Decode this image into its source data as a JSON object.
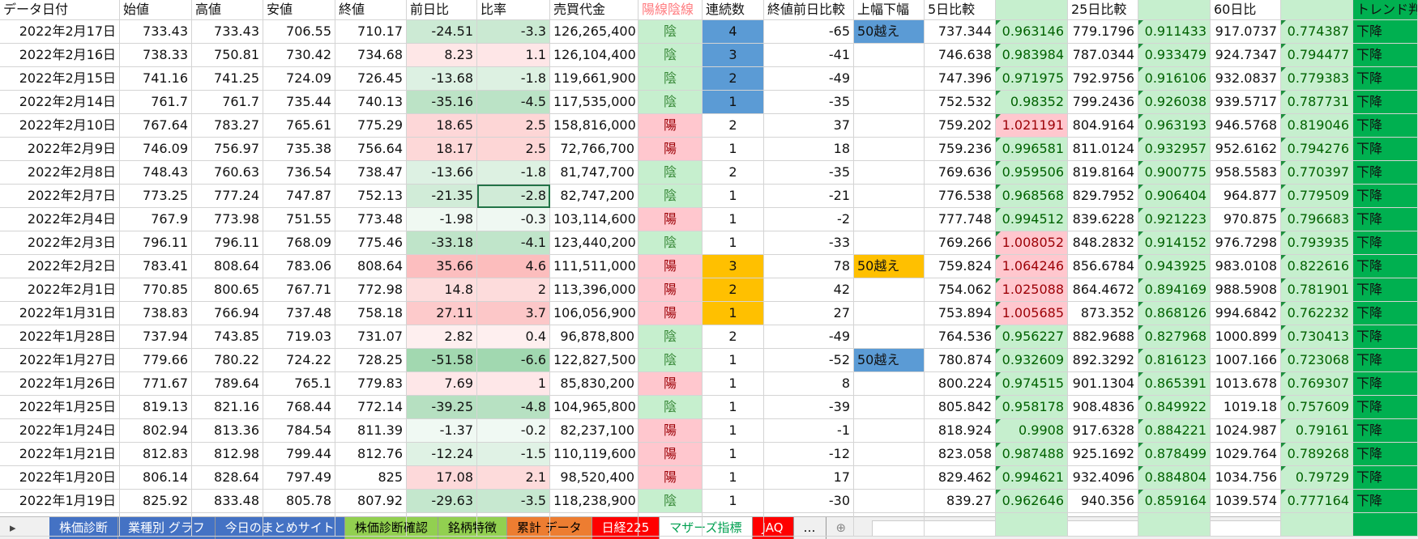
{
  "headers": [
    "データ日付",
    "始値",
    "高値",
    "安値",
    "終値",
    "前日比",
    "比率",
    "売買代金",
    "陽線陰線",
    "連続数",
    "終値前日比較",
    "上幅下幅",
    "5日比較",
    null,
    "25日比較",
    null,
    "60日比",
    null,
    "トレンド判断"
  ],
  "candle_fills": {
    "陽": "#ffc7ce",
    "陰": "#c6efce"
  },
  "candle_text_colors": {
    "陽": "#9c0006",
    "陰": "#3a8a3a"
  },
  "rows": [
    [
      "2022年2月17日",
      "733.43",
      "733.43",
      "706.55",
      "710.17",
      "-24.51",
      "-3.3",
      "126,265,400",
      "陰",
      "4",
      "-65",
      "50越え",
      "737.344",
      "0.963146",
      "779.1796",
      "0.911433",
      "917.0737",
      "0.774387",
      "下降"
    ],
    [
      "2022年2月16日",
      "738.33",
      "750.81",
      "730.42",
      "734.68",
      "8.23",
      "1.1",
      "126,104,400",
      "陰",
      "3",
      "-41",
      null,
      "746.638",
      "0.983984",
      "787.0344",
      "0.933479",
      "924.7347",
      "0.794477",
      "下降"
    ],
    [
      "2022年2月15日",
      "741.16",
      "741.25",
      "724.09",
      "726.45",
      "-13.68",
      "-1.8",
      "119,661,900",
      "陰",
      "2",
      "-49",
      null,
      "747.396",
      "0.971975",
      "792.9756",
      "0.916106",
      "932.0837",
      "0.779383",
      "下降"
    ],
    [
      "2022年2月14日",
      "761.7",
      "761.7",
      "735.44",
      "740.13",
      "-35.16",
      "-4.5",
      "117,535,000",
      "陰",
      "1",
      "-35",
      null,
      "752.532",
      "0.98352",
      "799.2436",
      "0.926038",
      "939.5717",
      "0.787731",
      "下降"
    ],
    [
      "2022年2月10日",
      "767.64",
      "783.27",
      "765.61",
      "775.29",
      "18.65",
      "2.5",
      "158,816,000",
      "陽",
      "2",
      "37",
      null,
      "759.202",
      "1.021191",
      "804.9164",
      "0.963193",
      "946.5768",
      "0.819046",
      "下降"
    ],
    [
      "2022年2月9日",
      "746.09",
      "756.97",
      "735.38",
      "756.64",
      "18.17",
      "2.5",
      "72,766,700",
      "陽",
      "1",
      "18",
      null,
      "759.236",
      "0.996581",
      "811.0124",
      "0.932957",
      "952.6162",
      "0.794276",
      "下降"
    ],
    [
      "2022年2月8日",
      "748.43",
      "760.63",
      "736.54",
      "738.47",
      "-13.66",
      "-1.8",
      "81,747,700",
      "陰",
      "2",
      "-35",
      null,
      "769.636",
      "0.959506",
      "819.8164",
      "0.900775",
      "958.5583",
      "0.770397",
      "下降"
    ],
    [
      "2022年2月7日",
      "773.25",
      "777.24",
      "747.87",
      "752.13",
      "-21.35",
      "-2.8",
      "82,747,200",
      "陰",
      "1",
      "-21",
      null,
      "776.538",
      "0.968568",
      "829.7952",
      "0.906404",
      "964.877",
      "0.779509",
      "下降"
    ],
    [
      "2022年2月4日",
      "767.9",
      "773.98",
      "751.55",
      "773.48",
      "-1.98",
      "-0.3",
      "103,114,600",
      "陽",
      "1",
      "-2",
      null,
      "777.748",
      "0.994512",
      "839.6228",
      "0.921223",
      "970.875",
      "0.796683",
      "下降"
    ],
    [
      "2022年2月3日",
      "796.11",
      "796.11",
      "768.09",
      "775.46",
      "-33.18",
      "-4.1",
      "123,440,200",
      "陰",
      "1",
      "-33",
      null,
      "769.266",
      "1.008052",
      "848.2832",
      "0.914152",
      "976.7298",
      "0.793935",
      "下降"
    ],
    [
      "2022年2月2日",
      "783.41",
      "808.64",
      "783.06",
      "808.64",
      "35.66",
      "4.6",
      "111,511,000",
      "陽",
      "3",
      "78",
      "50越え",
      "759.824",
      "1.064246",
      "856.6784",
      "0.943925",
      "983.0108",
      "0.822616",
      "下降"
    ],
    [
      "2022年2月1日",
      "770.85",
      "800.65",
      "767.71",
      "772.98",
      "14.8",
      "2",
      "113,396,000",
      "陽",
      "2",
      "42",
      null,
      "754.062",
      "1.025088",
      "864.4672",
      "0.894169",
      "988.5908",
      "0.781901",
      "下降"
    ],
    [
      "2022年1月31日",
      "738.83",
      "766.94",
      "737.48",
      "758.18",
      "27.11",
      "3.7",
      "106,056,900",
      "陽",
      "1",
      "27",
      null,
      "753.894",
      "1.005685",
      "873.352",
      "0.868126",
      "994.6842",
      "0.762232",
      "下降"
    ],
    [
      "2022年1月28日",
      "737.94",
      "743.85",
      "719.03",
      "731.07",
      "2.82",
      "0.4",
      "96,878,800",
      "陰",
      "2",
      "-49",
      null,
      "764.536",
      "0.956227",
      "882.9688",
      "0.827968",
      "1000.899",
      "0.730413",
      "下降"
    ],
    [
      "2022年1月27日",
      "779.66",
      "780.22",
      "724.22",
      "728.25",
      "-51.58",
      "-6.6",
      "122,827,500",
      "陰",
      "1",
      "-52",
      "50越え",
      "780.874",
      "0.932609",
      "892.3292",
      "0.816123",
      "1007.166",
      "0.723068",
      "下降"
    ],
    [
      "2022年1月26日",
      "771.67",
      "789.64",
      "765.1",
      "779.83",
      "7.69",
      "1",
      "85,830,200",
      "陽",
      "1",
      "8",
      null,
      "800.224",
      "0.974515",
      "901.1304",
      "0.865391",
      "1013.678",
      "0.769307",
      "下降"
    ],
    [
      "2022年1月25日",
      "819.13",
      "821.16",
      "768.44",
      "772.14",
      "-39.25",
      "-4.8",
      "104,965,800",
      "陰",
      "1",
      "-39",
      null,
      "805.842",
      "0.958178",
      "908.4836",
      "0.849922",
      "1019.18",
      "0.757609",
      "下降"
    ],
    [
      "2022年1月24日",
      "802.94",
      "813.36",
      "784.54",
      "811.39",
      "-1.37",
      "-0.2",
      "82,237,100",
      "陽",
      "1",
      "-1",
      null,
      "818.924",
      "0.9908",
      "917.6328",
      "0.884221",
      "1024.987",
      "0.79161",
      "下降"
    ],
    [
      "2022年1月21日",
      "812.83",
      "812.98",
      "799.44",
      "812.76",
      "-12.24",
      "-1.5",
      "110,119,600",
      "陽",
      "1",
      "-12",
      null,
      "823.058",
      "0.987488",
      "925.1692",
      "0.878499",
      "1029.764",
      "0.789268",
      "下降"
    ],
    [
      "2022年1月20日",
      "806.14",
      "828.64",
      "797.49",
      "825",
      "17.08",
      "2.1",
      "98,520,400",
      "陽",
      "1",
      "17",
      null,
      "829.462",
      "0.994621",
      "932.4096",
      "0.884804",
      "1034.756",
      "0.79729",
      "下降"
    ],
    [
      "2022年1月19日",
      "825.92",
      "833.48",
      "805.78",
      "807.92",
      "-29.63",
      "-3.5",
      "118,238,900",
      "陰",
      "1",
      "-30",
      null,
      "839.27",
      "0.962646",
      "940.356",
      "0.859164",
      "1039.574",
      "0.777164",
      "下降"
    ]
  ],
  "streak_fills": [
    "#5b9bd5",
    "#5b9bd5",
    "#5b9bd5",
    "#5b9bd5",
    null,
    null,
    null,
    null,
    null,
    null,
    "#ffc000",
    "#ffc000",
    "#ffc000",
    null,
    null,
    null,
    null,
    null,
    null,
    null,
    null
  ],
  "range_fills": [
    "#5b9bd5",
    null,
    null,
    null,
    null,
    null,
    null,
    null,
    null,
    null,
    "#ffc000",
    null,
    null,
    null,
    "#5b9bd5",
    null,
    null,
    null,
    null,
    null,
    null
  ],
  "sheet_tabs": [
    {
      "label": "株価診断",
      "color": "#4472c4",
      "text": "#ffffff"
    },
    {
      "label": "業種別 グラフ",
      "color": "#4472c4",
      "text": "#ffffff"
    },
    {
      "label": "今日のまとめサイト",
      "color": "#4472c4",
      "text": "#ffffff"
    },
    {
      "label": "株価診断確認",
      "color": "#92d050",
      "text": "#000000"
    },
    {
      "label": "銘柄特徴",
      "color": "#92d050",
      "text": "#000000"
    },
    {
      "label": "累計 データ",
      "color": "#ed7d31",
      "text": "#000000"
    },
    {
      "label": "日経225",
      "color": "#ff0000",
      "text": "#ffffff"
    },
    {
      "label": "マザーズ指標",
      "color": "#ffffff",
      "text": "#00a050"
    },
    {
      "label": "JAQ",
      "color": "#ff0000",
      "text": "#ffffff"
    }
  ]
}
